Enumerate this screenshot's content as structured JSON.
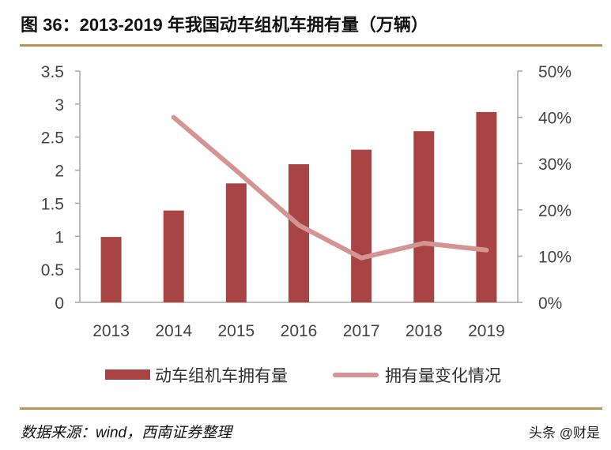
{
  "title": "图 36：2013-2019 年我国动车组机车拥有量（万辆）",
  "source": "数据来源：wind，西南证券整理",
  "watermark": "头条 @财是",
  "chart_data": {
    "type": "bar+line",
    "title": "图 36：2013-2019 年我国动车组机车拥有量（万辆）",
    "categories": [
      "2013",
      "2014",
      "2015",
      "2016",
      "2017",
      "2018",
      "2019"
    ],
    "series": [
      {
        "name": "动车组机车拥有量",
        "type": "bar",
        "axis": "left",
        "color": "#a84444",
        "values": [
          0.99,
          1.39,
          1.8,
          2.09,
          2.31,
          2.59,
          2.88
        ]
      },
      {
        "name": "拥有量变化情况",
        "type": "line",
        "axis": "right",
        "color": "#d49494",
        "values": [
          null,
          0.4,
          0.285,
          0.167,
          0.096,
          0.128,
          0.113
        ]
      }
    ],
    "left_axis": {
      "ylim": [
        0,
        3.5
      ],
      "ticks": [
        "0",
        "0.5",
        "1",
        "1.5",
        "2",
        "2.5",
        "3",
        "3.5"
      ]
    },
    "right_axis": {
      "ylim": [
        0,
        0.5
      ],
      "ticks": [
        "0%",
        "10%",
        "20%",
        "30%",
        "40%",
        "50%"
      ]
    },
    "grid": false,
    "legend": "bottom"
  }
}
